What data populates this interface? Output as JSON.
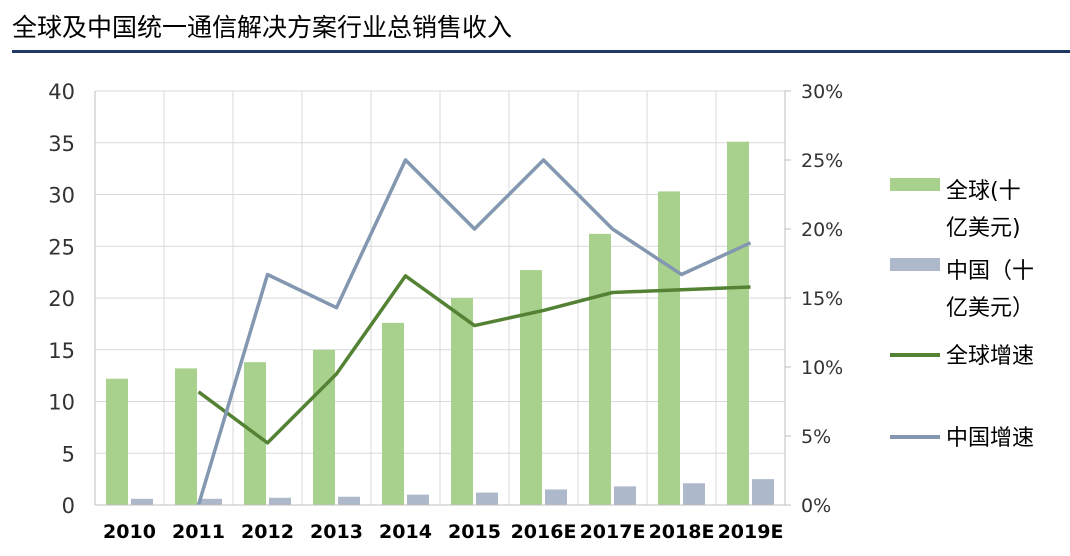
{
  "header": {
    "title": "全球及中国统一通信解决方案行业总销售收入"
  },
  "chart_data": {
    "type": "bar+line",
    "title": "全球及中国统一通信解决方案行业总销售收入",
    "categories": [
      "2010",
      "2011",
      "2012",
      "2013",
      "2014",
      "2015",
      "2016E",
      "2017E",
      "2018E",
      "2019E"
    ],
    "y_left": {
      "range": [
        0,
        40
      ],
      "ticks": [
        0,
        5,
        10,
        15,
        20,
        25,
        30,
        35,
        40
      ],
      "tick_labels": [
        "0",
        "5",
        "10",
        "15",
        "20",
        "25",
        "30",
        "35",
        "40"
      ]
    },
    "y_right": {
      "range": [
        0,
        0.3
      ],
      "ticks": [
        0,
        0.05,
        0.1,
        0.15,
        0.2,
        0.25,
        0.3
      ],
      "tick_labels": [
        "0%",
        "5%",
        "10%",
        "15%",
        "20%",
        "25%",
        "30%"
      ]
    },
    "grid": "horizontal+vertical",
    "legend_position": "right",
    "series": [
      {
        "name": "全球(十亿美元)",
        "legend_lines": [
          "全球(十",
          "亿美元)"
        ],
        "type": "bar",
        "axis": "left",
        "color": "#a9d18e",
        "values": [
          12.2,
          13.2,
          13.8,
          15.0,
          17.6,
          20.0,
          22.7,
          26.2,
          30.3,
          35.1
        ]
      },
      {
        "name": "中国（十亿美元）",
        "legend_lines": [
          "中国（十",
          "亿美元）"
        ],
        "type": "bar",
        "axis": "left",
        "color": "#adb9ca",
        "values": [
          0.6,
          0.6,
          0.7,
          0.8,
          1.0,
          1.2,
          1.5,
          1.8,
          2.1,
          2.5
        ]
      },
      {
        "name": "全球增速",
        "legend_lines": [
          "全球增速"
        ],
        "type": "line",
        "axis": "right",
        "color": "#548235",
        "values": [
          null,
          0.082,
          0.045,
          0.095,
          0.166,
          0.13,
          0.141,
          0.154,
          0.156,
          0.158
        ]
      },
      {
        "name": "中国增速",
        "legend_lines": [
          "中国增速"
        ],
        "type": "line",
        "axis": "right",
        "color": "#8497b0",
        "values": [
          null,
          0.0,
          0.167,
          0.143,
          0.25,
          0.2,
          0.25,
          0.2,
          0.167,
          0.19
        ]
      }
    ]
  }
}
